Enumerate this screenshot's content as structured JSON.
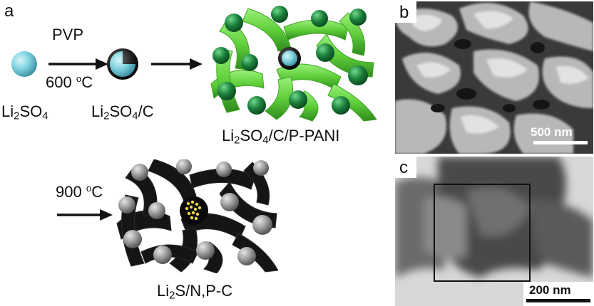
{
  "panels": {
    "a": {
      "letter": "a"
    },
    "b": {
      "letter": "b",
      "scale_label": "500 nm"
    },
    "c": {
      "letter": "c",
      "scale_label": "200 nm"
    }
  },
  "scheme": {
    "step1_top": "PVP",
    "step1_bottom_value": "600",
    "step1_bottom_unit_sup": "o",
    "step1_bottom_unit": "C",
    "step3_value": "900",
    "step3_unit_sup": "o",
    "step3_unit": "C",
    "compound1": {
      "a": "Li",
      "a_sub": "2",
      "b": "SO",
      "b_sub": "4"
    },
    "compound2": {
      "a": "Li",
      "a_sub": "2",
      "b": "SO",
      "b_sub": "4",
      "c": "/C"
    },
    "compound3": {
      "a": "Li",
      "a_sub": "2",
      "b": "SO",
      "b_sub": "4",
      "c": "/C/P-PANI"
    },
    "compound4": {
      "a": "Li",
      "a_sub": "2",
      "b": "S/N,P-C"
    }
  },
  "colors": {
    "sphere_blue": "#7fd3df",
    "green_network": "#5fcf3a",
    "green_ball": "#1c7f3b",
    "black_network": "#151515",
    "gray_ball": "#9a9a9a",
    "sulfur_dots": "#e8d84a"
  }
}
